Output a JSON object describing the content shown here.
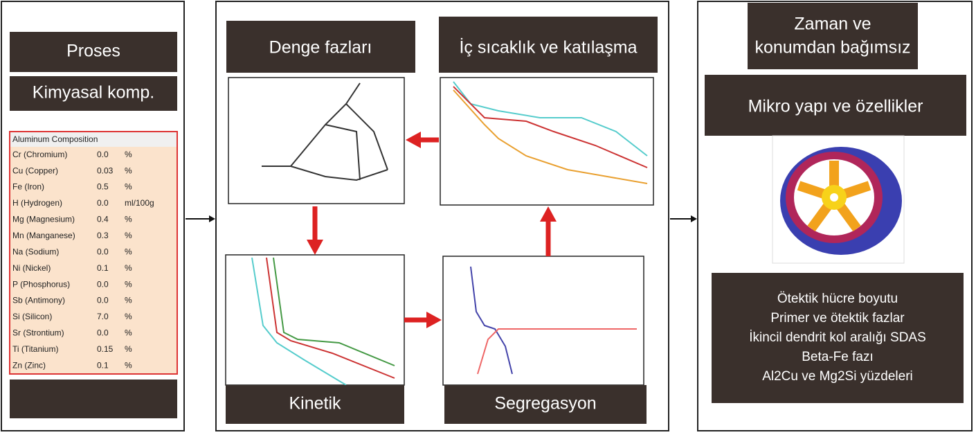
{
  "left": {
    "title": "Proses",
    "subtitle": "Kimyasal komp.",
    "table": {
      "header": "Aluminum Composition",
      "rows": [
        [
          "Cr (Chromium)",
          "0.0",
          "%"
        ],
        [
          "Cu (Copper)",
          "0.03",
          "%"
        ],
        [
          "Fe (Iron)",
          "0.5",
          "%"
        ],
        [
          "H (Hydrogen)",
          "0.0",
          "ml/100g"
        ],
        [
          "Mg (Magnesium)",
          "0.4",
          "%"
        ],
        [
          "Mn (Manganese)",
          "0.3",
          "%"
        ],
        [
          "Na (Sodium)",
          "0.0",
          "%"
        ],
        [
          "Ni (Nickel)",
          "0.1",
          "%"
        ],
        [
          "P (Phosphorus)",
          "0.0",
          "%"
        ],
        [
          "Sb (Antimony)",
          "0.0",
          "%"
        ],
        [
          "Si (Silicon)",
          "7.0",
          "%"
        ],
        [
          "Sr (Strontium)",
          "0.0",
          "%"
        ],
        [
          "Ti (Titanium)",
          "0.15",
          "%"
        ],
        [
          "Zn (Zinc)",
          "0.1",
          "%"
        ]
      ]
    }
  },
  "middle": {
    "equilibrium": "Denge fazları",
    "solidification": "İç sıcaklık ve katılaşma",
    "kinetics": "Kinetik",
    "segregation": "Segregasyon"
  },
  "right": {
    "title_lines": [
      "Zaman ve",
      "konumdan bağımsız"
    ],
    "subtitle": "Mikro yapı ve özellikler",
    "properties": [
      "Ötektik hücre boyutu",
      "Primer ve ötektik fazlar",
      "İkincil dendrit kol aralığı SDAS",
      "Beta-Fe fazı",
      "Al2Cu ve Mg2Si yüzdeleri"
    ]
  }
}
